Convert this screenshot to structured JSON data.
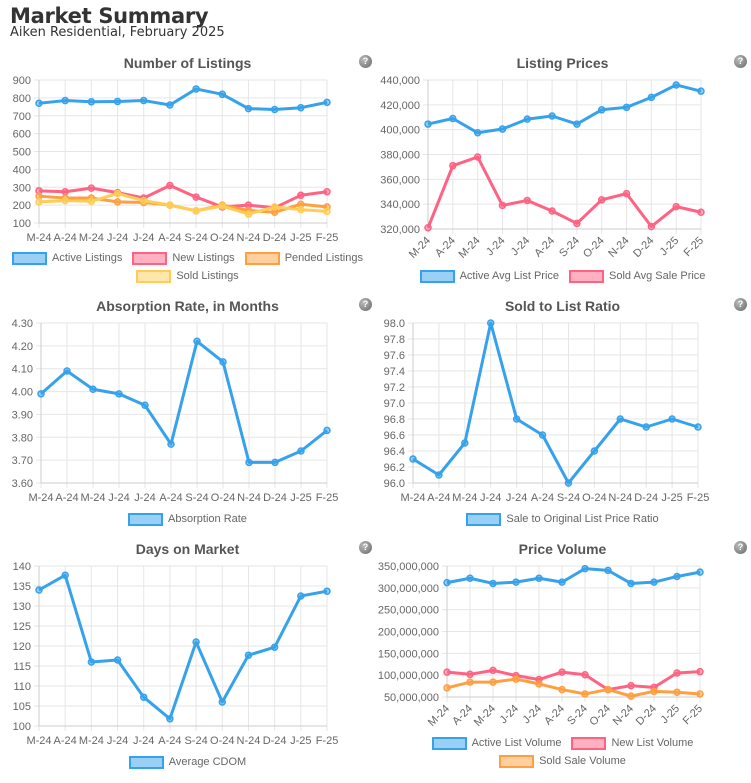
{
  "header": {
    "title": "Market Summary",
    "subtitle": "Aiken Residential, February 2025"
  },
  "help_icon": "question-circle-icon",
  "chart_data": [
    {
      "type": "line",
      "title": "Number of Listings",
      "categories": [
        "M-24",
        "A-24",
        "M-24",
        "J-24",
        "J-24",
        "A-24",
        "S-24",
        "O-24",
        "N-24",
        "D-24",
        "J-25",
        "F-25"
      ],
      "ylim": [
        100,
        900
      ],
      "yticks": [
        "100",
        "200",
        "300",
        "400",
        "500",
        "600",
        "700",
        "800",
        "900"
      ],
      "grid": true,
      "legend": "bottom",
      "series": [
        {
          "name": "Active Listings",
          "color": "#36a2eb",
          "values": [
            770,
            785,
            778,
            780,
            785,
            760,
            850,
            820,
            740,
            735,
            745,
            775
          ]
        },
        {
          "name": "New Listings",
          "color": "#ff6384",
          "values": [
            280,
            275,
            295,
            270,
            240,
            310,
            245,
            190,
            200,
            185,
            255,
            275
          ]
        },
        {
          "name": "Pended Listings",
          "color": "#ff9f40",
          "values": [
            250,
            240,
            240,
            218,
            215,
            200,
            168,
            200,
            170,
            160,
            205,
            190
          ]
        },
        {
          "name": "Sold Listings",
          "color": "#ffcd56",
          "values": [
            218,
            225,
            222,
            265,
            225,
            200,
            168,
            195,
            150,
            190,
            175,
            165
          ]
        }
      ]
    },
    {
      "type": "line",
      "title": "Listing Prices",
      "categories": [
        "M-24",
        "A-24",
        "M-24",
        "J-24",
        "J-24",
        "A-24",
        "S-24",
        "O-24",
        "N-24",
        "D-24",
        "J-25",
        "F-25"
      ],
      "ylim": [
        320000,
        440000
      ],
      "yticks": [
        "320,000",
        "340,000",
        "360,000",
        "380,000",
        "400,000",
        "420,000",
        "440,000"
      ],
      "grid": true,
      "legend": "bottom",
      "series": [
        {
          "name": "Active Avg List Price",
          "color": "#36a2eb",
          "values": [
            404500,
            409000,
            397500,
            400500,
            408500,
            411000,
            404500,
            416000,
            418000,
            426000,
            436000,
            431000
          ]
        },
        {
          "name": "Sold Avg Sale Price",
          "color": "#ff6384",
          "values": [
            321000,
            371000,
            378000,
            339000,
            343000,
            334500,
            324500,
            343500,
            348500,
            322000,
            338000,
            333500
          ]
        }
      ]
    },
    {
      "type": "line",
      "title": "Absorption Rate, in Months",
      "categories": [
        "M-24",
        "A-24",
        "M-24",
        "J-24",
        "J-24",
        "A-24",
        "S-24",
        "O-24",
        "N-24",
        "D-24",
        "J-25",
        "F-25"
      ],
      "ylim": [
        3.6,
        4.3
      ],
      "yticks": [
        "3.60",
        "3.70",
        "3.80",
        "3.90",
        "4.00",
        "4.10",
        "4.20",
        "4.30"
      ],
      "grid": true,
      "legend": "bottom",
      "series": [
        {
          "name": "Absorption Rate",
          "color": "#36a2eb",
          "values": [
            3.99,
            4.09,
            4.01,
            3.99,
            3.94,
            3.77,
            4.22,
            4.13,
            3.69,
            3.69,
            3.74,
            3.83
          ]
        }
      ]
    },
    {
      "type": "line",
      "title": "Sold to List Ratio",
      "categories": [
        "M-24",
        "A-24",
        "M-24",
        "J-24",
        "J-24",
        "A-24",
        "S-24",
        "O-24",
        "N-24",
        "D-24",
        "J-25",
        "F-25"
      ],
      "ylim": [
        96.0,
        98.0
      ],
      "yticks": [
        "96.0",
        "96.2",
        "96.4",
        "96.6",
        "96.8",
        "97.0",
        "97.2",
        "97.4",
        "97.6",
        "97.8",
        "98.0"
      ],
      "grid": true,
      "legend": "bottom",
      "series": [
        {
          "name": "Sale to Original List Price Ratio",
          "color": "#36a2eb",
          "values": [
            96.3,
            96.1,
            96.5,
            98.0,
            96.8,
            96.6,
            96.0,
            96.4,
            96.8,
            96.7,
            96.8,
            96.7
          ]
        }
      ]
    },
    {
      "type": "line",
      "title": "Days on Market",
      "categories": [
        "M-24",
        "A-24",
        "M-24",
        "J-24",
        "J-24",
        "A-24",
        "S-24",
        "O-24",
        "N-24",
        "D-24",
        "J-25",
        "F-25"
      ],
      "ylim": [
        100,
        140
      ],
      "yticks": [
        "100",
        "105",
        "110",
        "115",
        "120",
        "125",
        "130",
        "135",
        "140"
      ],
      "grid": true,
      "legend": "bottom",
      "series": [
        {
          "name": "Average CDOM",
          "color": "#36a2eb",
          "values": [
            134,
            137.7,
            116,
            116.5,
            107.2,
            101.8,
            121,
            106,
            117.7,
            119.7,
            132.5,
            133.7
          ]
        }
      ]
    },
    {
      "type": "line",
      "title": "Price Volume",
      "categories": [
        "M-24",
        "A-24",
        "M-24",
        "J-24",
        "J-24",
        "A-24",
        "S-24",
        "O-24",
        "N-24",
        "D-24",
        "J-25",
        "F-25"
      ],
      "ylim": [
        50000000,
        350000000
      ],
      "yticks": [
        "50,000,000",
        "100,000,000",
        "150,000,000",
        "200,000,000",
        "250,000,000",
        "300,000,000",
        "350,000,000"
      ],
      "grid": true,
      "legend": "bottom",
      "series": [
        {
          "name": "Active List Volume",
          "color": "#36a2eb",
          "values": [
            312000000,
            322000000,
            310000000,
            313000000,
            322000000,
            313000000,
            344000000,
            340000000,
            310000000,
            313000000,
            326000000,
            336000000
          ]
        },
        {
          "name": "New List Volume",
          "color": "#ff6384",
          "values": [
            107000000,
            102000000,
            111000000,
            99000000,
            90000000,
            107000000,
            101000000,
            67000000,
            76000000,
            72000000,
            105000000,
            108000000
          ]
        },
        {
          "name": "Sold Sale Volume",
          "color": "#ff9f40",
          "values": [
            71000000,
            84000000,
            84000000,
            91000000,
            80000000,
            67000000,
            57000000,
            67000000,
            52000000,
            63000000,
            61000000,
            57000000
          ]
        }
      ]
    }
  ]
}
